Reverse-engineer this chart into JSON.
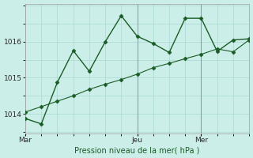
{
  "bg_color": "#cceee8",
  "grid_color": "#aad8d3",
  "line_color": "#1a5c25",
  "line1_x": [
    0,
    1,
    2,
    3,
    4,
    5,
    6,
    7,
    8,
    9,
    10,
    11,
    12,
    13,
    14
  ],
  "line1_y": [
    1013.87,
    1013.72,
    1014.87,
    1015.75,
    1015.18,
    1016.0,
    1016.72,
    1016.15,
    1015.95,
    1015.7,
    1016.65,
    1016.65,
    1015.73,
    1016.05,
    1016.08
  ],
  "line2_x": [
    0,
    1,
    2,
    3,
    4,
    5,
    6,
    7,
    8,
    9,
    10,
    11,
    12,
    13,
    14
  ],
  "line2_y": [
    1014.05,
    1014.2,
    1014.35,
    1014.5,
    1014.68,
    1014.82,
    1014.95,
    1015.1,
    1015.28,
    1015.4,
    1015.53,
    1015.65,
    1015.8,
    1015.72,
    1016.05
  ],
  "yticks": [
    1014,
    1015,
    1016
  ],
  "ylim": [
    1013.45,
    1017.05
  ],
  "xlim": [
    0,
    14
  ],
  "num_x_grid": 14,
  "xtick_positions": [
    0,
    7,
    11
  ],
  "xtick_labels": [
    "Mar",
    "Jeu",
    "Mer"
  ],
  "xlabel": "Pression niveau de la mer( hPa )",
  "xlabel_color": "#1a5c25",
  "vline_positions": [
    0,
    7,
    11
  ],
  "vline_color": "#779999",
  "marker_size": 2.5
}
